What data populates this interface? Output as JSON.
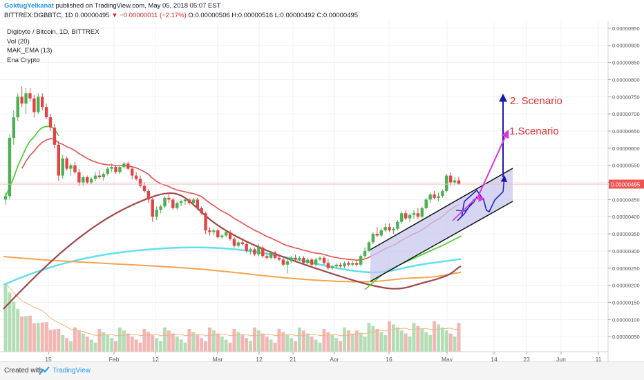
{
  "header": {
    "username": "GoktugYelkanat",
    "published": "published on TradingView.com, May 05, 2018 05:07 EST",
    "symbol": "BITTREX:DGBBTC, 1D",
    "price": "0.00000495",
    "change": "▼ −0.00000011 (−2.17%)",
    "ohlc": "O:0.00000506 H:0.00000516 L:0.00000492 C:0.00000495"
  },
  "legend": {
    "title": "Digibyte / Bitcoin, 1D, BITTREX",
    "vol": "Vol (20)",
    "mak": "MAK_EMA (13)",
    "ena": "Ena Crypto"
  },
  "footer": {
    "created": "Created with",
    "brand": "TradingView"
  },
  "colors": {
    "up": "#4caf50",
    "down": "#e04545",
    "ema13_green": "#4cd137",
    "ma_red": "#e55050",
    "ma_brown": "#a0474a",
    "ma_cyan": "#5ee0ee",
    "ma_orange": "#f5a34c",
    "channel_fill": "#c8c8ee",
    "arrow_blue": "#1a1aa8",
    "arrow_magenta": "#dd33dd",
    "scenario_text": "#e03030",
    "price_tag": "#ef5350"
  },
  "chart_data": {
    "type": "candlestick",
    "y_axis": {
      "range": [
        2.5e-07,
        9.5e-07
      ],
      "ticks": [
        "0.00000050",
        "0.00000100",
        "0.00000150",
        "0.00000200",
        "0.00000250",
        "0.00000300",
        "0.00000350",
        "0.00000400",
        "0.00000450",
        "0.00000500",
        "0.00000550",
        "0.00000600",
        "0.00000650",
        "0.00000700",
        "0.00000750",
        "0.00000800",
        "0.00000850",
        "0.00000900",
        "0.00000950"
      ]
    },
    "x_axis": {
      "ticks": [
        "15",
        "Feb",
        "12",
        "Mar",
        "12",
        "21",
        "Apr",
        "16",
        "May",
        "14",
        "23",
        "Jun",
        "11"
      ]
    },
    "current_price_label": "0.00000495",
    "annotations": [
      "2. Scenario",
      "1.Scenario"
    ],
    "candles": [
      [
        4.5,
        4.7,
        4.35,
        4.6
      ],
      [
        4.6,
        6.4,
        4.5,
        6.3
      ],
      [
        6.3,
        7.1,
        6.1,
        6.9
      ],
      [
        6.9,
        7.6,
        6.8,
        7.5
      ],
      [
        7.5,
        7.8,
        7.2,
        7.3
      ],
      [
        7.3,
        7.75,
        7.0,
        7.6
      ],
      [
        7.6,
        7.75,
        7.35,
        7.45
      ],
      [
        7.45,
        7.55,
        6.9,
        7.05
      ],
      [
        7.05,
        7.6,
        7.0,
        7.5
      ],
      [
        7.5,
        7.6,
        7.1,
        7.2
      ],
      [
        7.2,
        7.3,
        6.85,
        6.9
      ],
      [
        6.9,
        7.0,
        6.5,
        6.6
      ],
      [
        6.6,
        6.7,
        6.0,
        6.1
      ],
      [
        6.1,
        6.2,
        5.05,
        5.2
      ],
      [
        5.2,
        5.8,
        5.1,
        5.7
      ],
      [
        5.7,
        5.75,
        5.35,
        5.4
      ],
      [
        5.4,
        5.55,
        5.2,
        5.5
      ],
      [
        5.5,
        5.6,
        5.25,
        5.3
      ],
      [
        5.3,
        5.4,
        4.9,
        5.0
      ],
      [
        5.0,
        5.2,
        4.9,
        5.15
      ],
      [
        5.15,
        5.2,
        4.95,
        5.0
      ],
      [
        5.0,
        5.15,
        4.95,
        5.1
      ],
      [
        5.1,
        5.3,
        5.05,
        5.2
      ],
      [
        5.2,
        5.35,
        5.1,
        5.15
      ],
      [
        5.15,
        5.3,
        5.05,
        5.25
      ],
      [
        5.25,
        5.45,
        5.2,
        5.4
      ],
      [
        5.4,
        5.55,
        5.3,
        5.45
      ],
      [
        5.45,
        5.5,
        5.25,
        5.3
      ],
      [
        5.3,
        5.5,
        5.25,
        5.45
      ],
      [
        5.45,
        5.6,
        5.4,
        5.55
      ],
      [
        5.55,
        5.6,
        5.35,
        5.4
      ],
      [
        5.4,
        5.45,
        5.1,
        5.2
      ],
      [
        5.2,
        5.3,
        5.05,
        5.1
      ],
      [
        5.1,
        5.2,
        4.85,
        4.9
      ],
      [
        4.9,
        5.0,
        4.7,
        4.75
      ],
      [
        4.75,
        4.8,
        4.4,
        4.5
      ],
      [
        4.5,
        4.55,
        3.85,
        4.0
      ],
      [
        4.0,
        4.3,
        3.9,
        4.2
      ],
      [
        4.2,
        4.35,
        4.1,
        4.3
      ],
      [
        4.3,
        4.6,
        4.25,
        4.55
      ],
      [
        4.55,
        4.7,
        4.4,
        4.5
      ],
      [
        4.5,
        4.55,
        4.2,
        4.25
      ],
      [
        4.25,
        4.45,
        4.2,
        4.4
      ],
      [
        4.4,
        4.5,
        4.3,
        4.45
      ],
      [
        4.45,
        4.55,
        4.35,
        4.5
      ],
      [
        4.5,
        4.55,
        4.35,
        4.4
      ],
      [
        4.4,
        4.55,
        4.35,
        4.5
      ],
      [
        4.5,
        4.55,
        4.2,
        4.25
      ],
      [
        4.25,
        4.3,
        4.05,
        4.1
      ],
      [
        4.1,
        4.15,
        3.5,
        3.6
      ],
      [
        3.6,
        3.7,
        3.45,
        3.55
      ],
      [
        3.55,
        3.65,
        3.45,
        3.6
      ],
      [
        3.6,
        3.65,
        3.35,
        3.4
      ],
      [
        3.4,
        3.5,
        3.35,
        3.45
      ],
      [
        3.45,
        3.6,
        3.4,
        3.55
      ],
      [
        3.55,
        3.6,
        3.3,
        3.35
      ],
      [
        3.35,
        3.4,
        3.1,
        3.15
      ],
      [
        3.15,
        3.3,
        3.1,
        3.25
      ],
      [
        3.25,
        3.35,
        3.15,
        3.2
      ],
      [
        3.2,
        3.25,
        2.95,
        3.0
      ],
      [
        3.0,
        3.1,
        2.9,
        3.05
      ],
      [
        3.05,
        3.1,
        2.85,
        2.9
      ],
      [
        2.9,
        3.2,
        2.85,
        3.1
      ],
      [
        3.1,
        3.15,
        2.8,
        2.85
      ],
      [
        2.85,
        2.95,
        2.75,
        2.8
      ],
      [
        2.8,
        3.0,
        2.75,
        2.95
      ],
      [
        2.95,
        3.0,
        2.75,
        2.8
      ],
      [
        2.8,
        2.9,
        2.7,
        2.75
      ],
      [
        2.75,
        2.8,
        2.55,
        2.6
      ],
      [
        2.6,
        2.75,
        2.35,
        2.7
      ],
      [
        2.7,
        2.85,
        2.65,
        2.8
      ],
      [
        2.8,
        2.9,
        2.7,
        2.75
      ],
      [
        2.75,
        2.85,
        2.7,
        2.8
      ],
      [
        2.8,
        2.85,
        2.6,
        2.65
      ],
      [
        2.65,
        2.8,
        2.6,
        2.75
      ],
      [
        2.75,
        2.8,
        2.55,
        2.6
      ],
      [
        2.6,
        2.8,
        2.55,
        2.75
      ],
      [
        2.75,
        2.85,
        2.7,
        2.8
      ],
      [
        2.8,
        2.85,
        2.6,
        2.65
      ],
      [
        2.65,
        2.75,
        2.45,
        2.5
      ],
      [
        2.5,
        2.6,
        2.45,
        2.55
      ],
      [
        2.55,
        2.65,
        2.5,
        2.6
      ],
      [
        2.6,
        2.65,
        2.5,
        2.55
      ],
      [
        2.55,
        2.7,
        2.5,
        2.65
      ],
      [
        2.65,
        2.7,
        2.55,
        2.6
      ],
      [
        2.6,
        2.7,
        2.55,
        2.65
      ],
      [
        2.65,
        2.75,
        2.55,
        2.6
      ],
      [
        2.6,
        2.9,
        2.55,
        2.85
      ],
      [
        2.85,
        3.1,
        2.8,
        3.0
      ],
      [
        3.0,
        3.3,
        2.95,
        3.25
      ],
      [
        3.25,
        3.55,
        3.2,
        3.5
      ],
      [
        3.5,
        3.7,
        3.4,
        3.45
      ],
      [
        3.45,
        3.65,
        3.4,
        3.6
      ],
      [
        3.6,
        3.8,
        3.55,
        3.7
      ],
      [
        3.7,
        3.8,
        3.55,
        3.6
      ],
      [
        3.6,
        3.7,
        3.5,
        3.65
      ],
      [
        3.65,
        3.9,
        3.6,
        3.85
      ],
      [
        3.85,
        4.15,
        3.8,
        4.1
      ],
      [
        4.1,
        4.2,
        3.9,
        3.95
      ],
      [
        3.95,
        4.1,
        3.85,
        4.05
      ],
      [
        4.05,
        4.2,
        3.95,
        4.1
      ],
      [
        4.1,
        4.25,
        3.95,
        4.0
      ],
      [
        4.0,
        4.3,
        3.95,
        4.25
      ],
      [
        4.25,
        4.55,
        4.2,
        4.5
      ],
      [
        4.5,
        4.7,
        4.4,
        4.65
      ],
      [
        4.65,
        4.75,
        4.5,
        4.55
      ],
      [
        4.55,
        4.7,
        4.45,
        4.6
      ],
      [
        4.6,
        4.8,
        4.55,
        4.75
      ],
      [
        4.75,
        5.25,
        4.7,
        5.2
      ],
      [
        5.2,
        5.3,
        4.9,
        5.0
      ],
      [
        5.0,
        5.16,
        4.92,
        5.06
      ],
      [
        5.06,
        5.16,
        4.92,
        4.95
      ]
    ],
    "volume_note": "volume bars scale 0-1"
  }
}
